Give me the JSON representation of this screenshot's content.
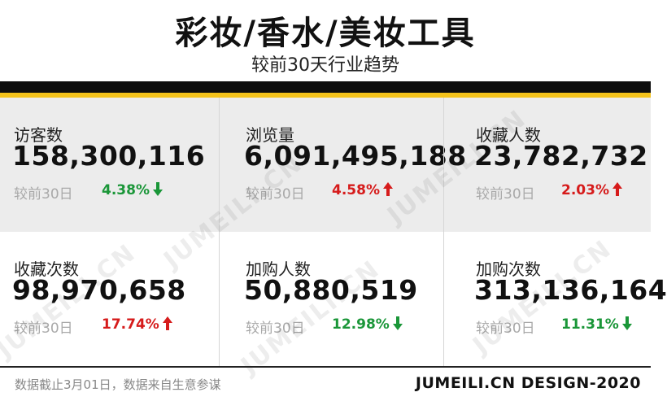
{
  "header": {
    "title": "彩妆/香水/美妆工具",
    "subtitle": "较前30天行业趋势"
  },
  "metrics": [
    {
      "label": "访客数",
      "value": "158,300,116",
      "compare_label": "较前30日",
      "change": "4.38%",
      "direction": "down"
    },
    {
      "label": "浏览量",
      "value": "6,091,495,188",
      "compare_label": "较前30日",
      "change": "4.58%",
      "direction": "up"
    },
    {
      "label": "收藏人数",
      "value": "23,782,732",
      "compare_label": "较前30日",
      "change": "2.03%",
      "direction": "up"
    },
    {
      "label": "收藏次数",
      "value": "98,970,658",
      "compare_label": "较前30日",
      "change": "17.74%",
      "direction": "up"
    },
    {
      "label": "加购人数",
      "value": "50,880,519",
      "compare_label": "较前30日",
      "change": "12.98%",
      "direction": "down"
    },
    {
      "label": "加购次数",
      "value": "313,136,164",
      "compare_label": "较前30日",
      "change": "11.31%",
      "direction": "down"
    }
  ],
  "watermark": "JUMEILI.CN",
  "footer": {
    "note": "数据截止3月01日，数据来自生意参谋",
    "brand": "JUMEILI.CN DESIGN-2020"
  },
  "colors": {
    "up": "#d61b1b",
    "down": "#1a9638",
    "accent_band": "#f3c21b",
    "dark_band": "#0d0d0d"
  }
}
